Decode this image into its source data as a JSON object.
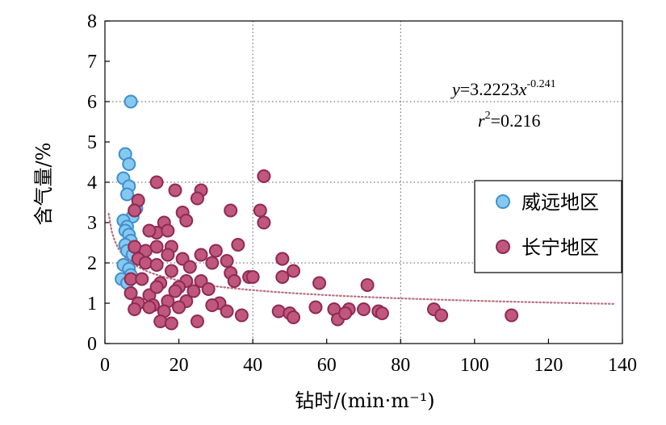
{
  "chart_data": {
    "type": "scatter",
    "title": "",
    "xlabel": "钻时/(min·m⁻¹)",
    "ylabel": "含气量/%",
    "xlim": [
      0,
      140
    ],
    "ylim": [
      0,
      8
    ],
    "xticks": [
      0,
      20,
      40,
      60,
      80,
      100,
      120,
      140
    ],
    "yticks": [
      0,
      1,
      2,
      3,
      4,
      5,
      6,
      7,
      8
    ],
    "grid": "dotted, at x=40 and x=80, y=2/4/6",
    "legend_position": "right",
    "series": [
      {
        "name": "威远地区",
        "color": "#86c9ef",
        "stroke": "#3e8fcf",
        "x": [
          7,
          5.5,
          6.5,
          5,
          6.5,
          6,
          8.5,
          7.5,
          5,
          6,
          5.5,
          6.5,
          7,
          5.5,
          6,
          7.5,
          5,
          6.5,
          7,
          4.5,
          6
        ],
        "y": [
          6.0,
          4.7,
          4.45,
          4.1,
          3.9,
          3.7,
          3.35,
          3.15,
          3.05,
          2.9,
          2.8,
          2.7,
          2.55,
          2.45,
          2.3,
          2.2,
          1.95,
          1.85,
          1.7,
          1.6,
          1.5
        ]
      },
      {
        "name": "长宁地区",
        "color": "#c0577c",
        "stroke": "#8f2a52",
        "x": [
          14,
          19,
          9,
          26,
          25,
          34,
          43,
          42,
          8,
          16,
          14,
          21,
          17,
          22,
          43,
          12,
          18,
          11,
          36,
          8,
          14,
          30,
          48,
          26,
          17,
          33,
          9,
          48,
          21,
          11,
          29,
          51,
          34,
          23,
          39,
          40,
          7,
          14,
          18,
          26,
          22,
          35,
          48,
          10,
          15,
          20,
          28,
          58,
          71,
          7,
          12,
          19,
          24,
          9,
          14,
          22,
          31,
          13,
          17,
          8,
          12,
          16,
          20,
          29,
          47,
          57,
          62,
          66,
          70,
          74,
          89,
          33,
          37,
          50,
          51,
          63,
          65,
          75,
          91,
          110,
          15,
          18,
          25
        ],
        "y": [
          4.0,
          3.8,
          3.55,
          3.8,
          3.6,
          3.3,
          4.15,
          3.3,
          3.3,
          3.0,
          2.75,
          3.25,
          2.8,
          3.05,
          3.0,
          2.8,
          2.4,
          2.3,
          2.45,
          2.4,
          2.4,
          2.3,
          2.1,
          2.2,
          2.2,
          2.05,
          2.1,
          2.1,
          2.1,
          2.0,
          2.0,
          1.8,
          1.75,
          1.9,
          1.65,
          1.65,
          1.6,
          1.95,
          1.8,
          1.55,
          1.55,
          1.55,
          1.65,
          1.6,
          1.5,
          1.4,
          1.35,
          1.5,
          1.45,
          1.25,
          1.2,
          1.3,
          1.3,
          1.0,
          1.4,
          1.05,
          1.0,
          0.95,
          1.05,
          0.85,
          0.9,
          0.8,
          0.9,
          0.95,
          0.8,
          0.9,
          0.85,
          0.85,
          0.85,
          0.8,
          0.85,
          0.8,
          0.7,
          0.75,
          0.65,
          0.6,
          0.75,
          0.75,
          0.7,
          0.7,
          0.55,
          0.5,
          0.55
        ]
      }
    ],
    "trendline": {
      "type": "power",
      "a": 3.2223,
      "b": -0.241,
      "x_range": [
        1,
        138
      ],
      "color": "#b8707f",
      "style": "dotted"
    },
    "annotations": {
      "equation_prefix": "y",
      "equation_middle": "=3.2223",
      "equation_var": "x",
      "equation_exp": "-0.241",
      "r2_prefix": "r",
      "r2_sup": "2",
      "r2_value": "=0.216"
    }
  }
}
